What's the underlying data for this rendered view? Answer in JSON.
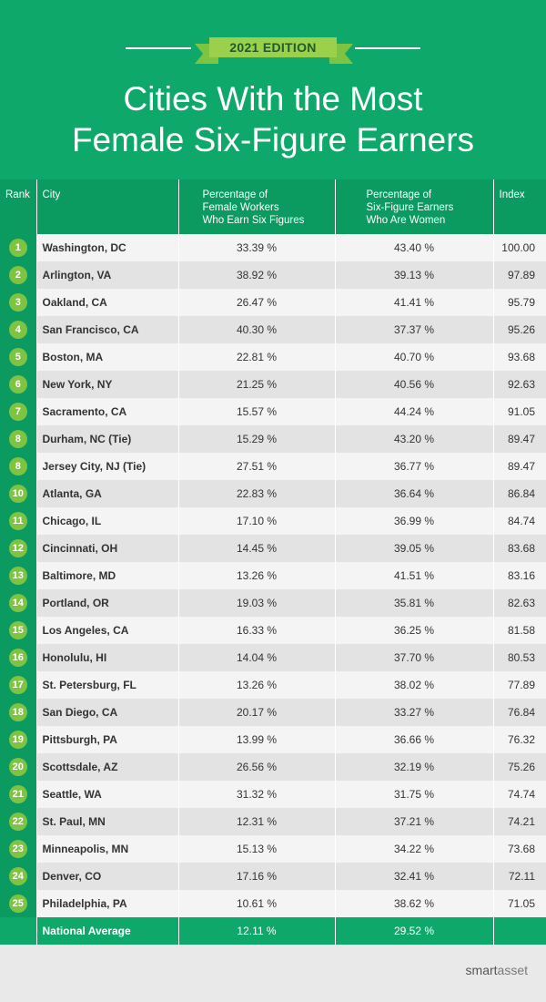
{
  "header": {
    "edition": "2021 EDITION",
    "title_line1": "Cities With the Most",
    "title_line2": "Female Six-Figure Earners"
  },
  "table": {
    "columns": {
      "rank": "Rank",
      "city": "City",
      "pct_female_line1": "Percentage of",
      "pct_female_line2": "Female Workers",
      "pct_female_line3": "Who Earn Six Figures",
      "pct_women_line1": "Percentage of",
      "pct_women_line2": "Six-Figure Earners",
      "pct_women_line3": "Who Are Women",
      "index": "Index"
    },
    "rows": [
      {
        "rank": "1",
        "city": "Washington, DC",
        "pct_female": "33.39 %",
        "pct_women": "43.40 %",
        "index": "100.00"
      },
      {
        "rank": "2",
        "city": "Arlington, VA",
        "pct_female": "38.92 %",
        "pct_women": "39.13 %",
        "index": "97.89"
      },
      {
        "rank": "3",
        "city": "Oakland, CA",
        "pct_female": "26.47 %",
        "pct_women": "41.41 %",
        "index": "95.79"
      },
      {
        "rank": "4",
        "city": "San Francisco, CA",
        "pct_female": "40.30 %",
        "pct_women": "37.37 %",
        "index": "95.26"
      },
      {
        "rank": "5",
        "city": "Boston, MA",
        "pct_female": "22.81 %",
        "pct_women": "40.70 %",
        "index": "93.68"
      },
      {
        "rank": "6",
        "city": "New York, NY",
        "pct_female": "21.25 %",
        "pct_women": "40.56 %",
        "index": "92.63"
      },
      {
        "rank": "7",
        "city": "Sacramento, CA",
        "pct_female": "15.57 %",
        "pct_women": "44.24 %",
        "index": "91.05"
      },
      {
        "rank": "8",
        "city": "Durham, NC (Tie)",
        "pct_female": "15.29 %",
        "pct_women": "43.20 %",
        "index": "89.47"
      },
      {
        "rank": "8",
        "city": "Jersey City, NJ (Tie)",
        "pct_female": "27.51 %",
        "pct_women": "36.77 %",
        "index": "89.47"
      },
      {
        "rank": "10",
        "city": "Atlanta, GA",
        "pct_female": "22.83 %",
        "pct_women": "36.64 %",
        "index": "86.84"
      },
      {
        "rank": "11",
        "city": "Chicago, IL",
        "pct_female": "17.10 %",
        "pct_women": "36.99 %",
        "index": "84.74"
      },
      {
        "rank": "12",
        "city": "Cincinnati, OH",
        "pct_female": "14.45 %",
        "pct_women": "39.05 %",
        "index": "83.68"
      },
      {
        "rank": "13",
        "city": "Baltimore, MD",
        "pct_female": "13.26 %",
        "pct_women": "41.51 %",
        "index": "83.16"
      },
      {
        "rank": "14",
        "city": "Portland, OR",
        "pct_female": "19.03 %",
        "pct_women": "35.81 %",
        "index": "82.63"
      },
      {
        "rank": "15",
        "city": "Los Angeles, CA",
        "pct_female": "16.33 %",
        "pct_women": "36.25 %",
        "index": "81.58"
      },
      {
        "rank": "16",
        "city": "Honolulu, HI",
        "pct_female": "14.04 %",
        "pct_women": "37.70 %",
        "index": "80.53"
      },
      {
        "rank": "17",
        "city": "St. Petersburg, FL",
        "pct_female": "13.26 %",
        "pct_women": "38.02 %",
        "index": "77.89"
      },
      {
        "rank": "18",
        "city": "San Diego, CA",
        "pct_female": "20.17 %",
        "pct_women": "33.27 %",
        "index": "76.84"
      },
      {
        "rank": "19",
        "city": "Pittsburgh, PA",
        "pct_female": "13.99 %",
        "pct_women": "36.66 %",
        "index": "76.32"
      },
      {
        "rank": "20",
        "city": "Scottsdale, AZ",
        "pct_female": "26.56 %",
        "pct_women": "32.19 %",
        "index": "75.26"
      },
      {
        "rank": "21",
        "city": "Seattle, WA",
        "pct_female": "31.32 %",
        "pct_women": "31.75 %",
        "index": "74.74"
      },
      {
        "rank": "22",
        "city": "St. Paul, MN",
        "pct_female": "12.31 %",
        "pct_women": "37.21 %",
        "index": "74.21"
      },
      {
        "rank": "23",
        "city": "Minneapolis, MN",
        "pct_female": "15.13 %",
        "pct_women": "34.22 %",
        "index": "73.68"
      },
      {
        "rank": "24",
        "city": "Denver, CO",
        "pct_female": "17.16 %",
        "pct_women": "32.41 %",
        "index": "72.11"
      },
      {
        "rank": "25",
        "city": "Philadelphia, PA",
        "pct_female": "10.61 %",
        "pct_women": "38.62 %",
        "index": "71.05"
      }
    ],
    "national_average": {
      "label": "National Average",
      "pct_female": "12.11 %",
      "pct_women": "29.52 %"
    }
  },
  "footer": {
    "brand_smart": "smart",
    "brand_asset": "asset"
  },
  "colors": {
    "header_green": "#0fa86b",
    "table_header_green": "#0b9a60",
    "badge_green": "#7fc342",
    "ribbon_green": "#9bd04d"
  }
}
